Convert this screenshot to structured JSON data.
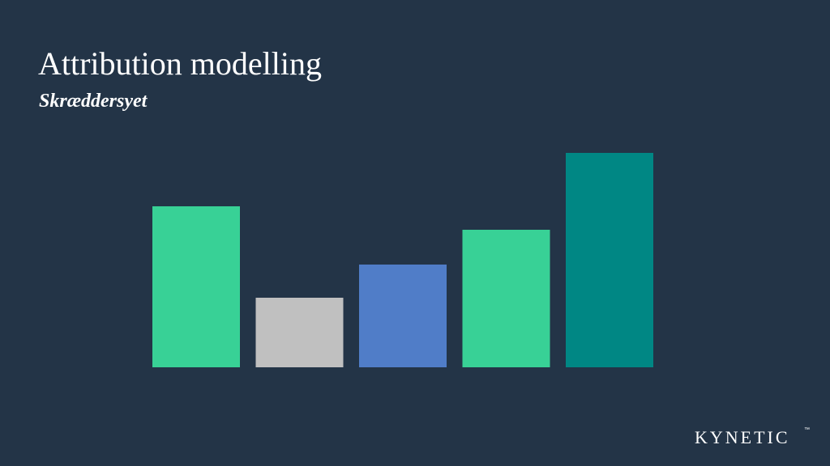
{
  "chart_data": {
    "type": "bar",
    "title": "Attribution modelling",
    "subtitle": "Skræddersyet",
    "categories": [
      null,
      null,
      null,
      null,
      null
    ],
    "values": [
      199,
      86,
      127,
      170,
      265
    ],
    "colors": [
      "#38d196",
      "#c0c0c0",
      "#507dc8",
      "#38d196",
      "#008784"
    ],
    "ylim": [
      0,
      300
    ]
  },
  "brand": {
    "name": "KYNETIC",
    "mark": "™"
  }
}
